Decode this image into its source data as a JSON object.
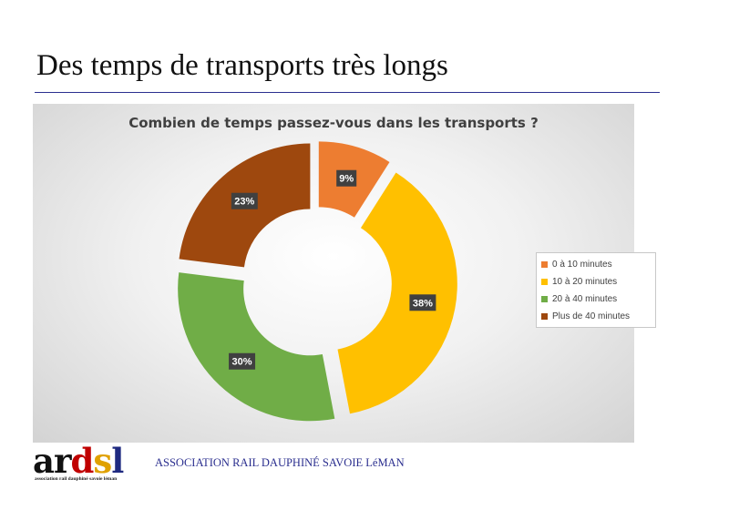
{
  "slide": {
    "title": "Des temps de transports très longs"
  },
  "chart_data": {
    "type": "pie",
    "donut": true,
    "exploded": true,
    "title": "Combien de temps passez-vous dans les transports ?",
    "categories": [
      "0 à 10 minutes",
      "10 à 20 minutes",
      "20 à 40 minutes",
      "Plus de 40 minutes"
    ],
    "values": [
      9,
      38,
      30,
      23
    ],
    "data_labels": [
      "9%",
      "38%",
      "30%",
      "23%"
    ],
    "colors": [
      "#ed7d31",
      "#ffc000",
      "#70ad47",
      "#9e480e"
    ],
    "legend_position": "right"
  },
  "footer": {
    "logo_letters": [
      "a",
      "r",
      "d",
      "s",
      "l"
    ],
    "logo_colors": [
      "#111111",
      "#111111",
      "#c00000",
      "#e0a100",
      "#1f2a80"
    ],
    "logo_subtitle": "association rail dauphiné savoie léman",
    "association_name": "ASSOCIATION RAIL DAUPHINÉ SAVOIE LéMAN"
  }
}
